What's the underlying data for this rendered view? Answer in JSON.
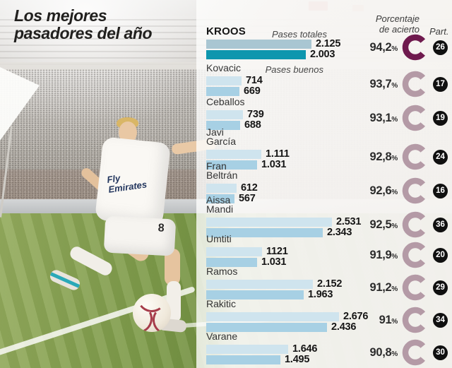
{
  "title": {
    "line1": "Los mejores",
    "line2": "pasadores del año"
  },
  "headers": {
    "accuracy": "Porcentaje\nde acierto",
    "participations": "Part."
  },
  "legend": {
    "total": "Pases totales",
    "good": "Pases buenos"
  },
  "percent_sign": "%",
  "photo": {
    "jersey_sponsor": "Fly\nEmirates",
    "shorts_number": "8"
  },
  "colors": {
    "bar_total_light": "#cfe4ee",
    "bar_good_light": "#a7d0e4",
    "bar_total_lead": "#a9c6d2",
    "bar_good_lead": "#0e96ae",
    "donut_lead": "#6f1a4e",
    "donut": "#b49aa6",
    "badge_bg": "#101010"
  },
  "rows": [
    {
      "name": "KROOS",
      "total": "2.125",
      "good": "2.003",
      "pct": "94,2",
      "part": "26"
    },
    {
      "name": "Kovacic",
      "total": "714",
      "good": "669",
      "pct": "93,7",
      "part": "17"
    },
    {
      "name": "Ceballos",
      "total": "739",
      "good": "688",
      "pct": "93,1",
      "part": "19"
    },
    {
      "name": "Javi\nGarcía",
      "total": "1.111",
      "good": "1.031",
      "pct": "92,8",
      "part": "24"
    },
    {
      "name": "Fran\nBeltrán",
      "total": "612",
      "good": "567",
      "pct": "92,6",
      "part": "16"
    },
    {
      "name": "Aissa\nMandi",
      "total": "2.531",
      "good": "2.343",
      "pct": "92,5",
      "part": "36"
    },
    {
      "name": "Umtiti",
      "total": "1121",
      "good": "1.031",
      "pct": "91,9",
      "part": "20"
    },
    {
      "name": "Ramos",
      "total": "2.152",
      "good": "1.963",
      "pct": "91,2",
      "part": "29"
    },
    {
      "name": "Rakitic",
      "total": "2.676",
      "good": "2.436",
      "pct": "91",
      "part": "34"
    },
    {
      "name": "Varane",
      "total": "1.646",
      "good": "1.495",
      "pct": "90,8",
      "part": "30"
    }
  ],
  "chart_data": {
    "type": "bar",
    "orientation": "horizontal",
    "title": "Los mejores pasadores del año",
    "categories": [
      "Kroos",
      "Kovacic",
      "Ceballos",
      "Javi García",
      "Fran Beltrán",
      "Aissa Mandi",
      "Umtiti",
      "Ramos",
      "Rakitic",
      "Varane"
    ],
    "series": [
      {
        "name": "Pases totales",
        "values": [
          2125,
          714,
          739,
          1111,
          612,
          2531,
          1121,
          2152,
          2676,
          1646
        ]
      },
      {
        "name": "Pases buenos",
        "values": [
          2003,
          669,
          688,
          1031,
          567,
          2343,
          1031,
          1963,
          2436,
          1495
        ]
      }
    ],
    "accuracy_pct": [
      94.2,
      93.7,
      93.1,
      92.8,
      92.6,
      92.5,
      91.9,
      91.2,
      91,
      90.8
    ],
    "participations": [
      26,
      17,
      19,
      24,
      16,
      36,
      20,
      29,
      34,
      30
    ],
    "xlim": [
      0,
      2700
    ],
    "grid": false,
    "legend_position": "top-of-first-row"
  }
}
